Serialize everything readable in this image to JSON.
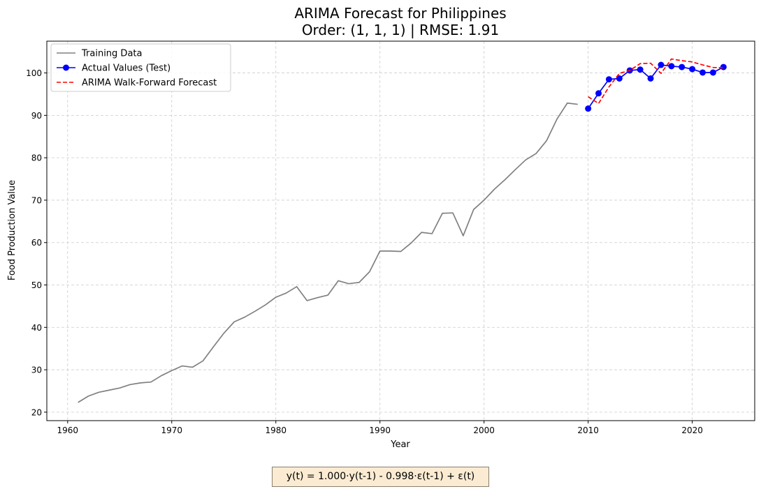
{
  "chart_data": {
    "type": "line",
    "title": "ARIMA Forecast for Philippines",
    "subtitle": "Order: (1, 1, 1) | RMSE: 1.91",
    "xlabel": "Year",
    "ylabel": "Food Production Value",
    "xlim": [
      1958,
      2026
    ],
    "ylim": [
      18,
      107.5
    ],
    "x_ticks": [
      1960,
      1970,
      1980,
      1990,
      2000,
      2010,
      2020
    ],
    "y_ticks": [
      20,
      30,
      40,
      50,
      60,
      70,
      80,
      90,
      100
    ],
    "grid": true,
    "legend_position": "top-left",
    "series": [
      {
        "name": "Training Data",
        "color": "#808080",
        "style": "solid",
        "marker": "none",
        "x": [
          1961,
          1962,
          1963,
          1964,
          1965,
          1966,
          1967,
          1968,
          1969,
          1970,
          1971,
          1972,
          1973,
          1974,
          1975,
          1976,
          1977,
          1978,
          1979,
          1980,
          1981,
          1982,
          1983,
          1984,
          1985,
          1986,
          1987,
          1988,
          1989,
          1990,
          1991,
          1992,
          1993,
          1994,
          1995,
          1996,
          1997,
          1998,
          1999,
          2000,
          2001,
          2002,
          2003,
          2004,
          2005,
          2006,
          2007,
          2008,
          2009
        ],
        "y": [
          22.3,
          23.8,
          24.7,
          25.2,
          25.7,
          26.5,
          26.9,
          27.1,
          28.6,
          29.8,
          30.9,
          30.6,
          32.1,
          35.4,
          38.6,
          41.3,
          42.4,
          43.8,
          45.3,
          47.1,
          48.1,
          49.6,
          46.3,
          47.0,
          47.6,
          51.0,
          50.3,
          50.6,
          53.1,
          58.0,
          58.0,
          57.9,
          59.9,
          62.4,
          62.1,
          66.9,
          67.0,
          61.6,
          67.8,
          70.0,
          72.6,
          74.8,
          77.2,
          79.5,
          81.0,
          84.0,
          89.1,
          92.9,
          92.6
        ]
      },
      {
        "name": "Actual Values (Test)",
        "color": "#0000ff",
        "style": "solid",
        "marker": "circle",
        "x": [
          2010,
          2011,
          2012,
          2013,
          2014,
          2015,
          2016,
          2017,
          2018,
          2019,
          2020,
          2021,
          2022,
          2023
        ],
        "y": [
          91.6,
          95.2,
          98.5,
          98.7,
          100.6,
          100.8,
          98.7,
          101.9,
          101.6,
          101.4,
          100.9,
          100.1,
          100.1,
          101.4
        ]
      },
      {
        "name": "ARIMA Walk-Forward Forecast",
        "color": "#ff0000",
        "style": "dashed",
        "marker": "none",
        "x": [
          2010,
          2011,
          2012,
          2013,
          2014,
          2015,
          2016,
          2017,
          2018,
          2019,
          2020,
          2021,
          2022,
          2023
        ],
        "y": [
          94.4,
          92.8,
          96.7,
          99.9,
          100.6,
          102.2,
          102.3,
          99.9,
          103.3,
          102.9,
          102.6,
          101.9,
          101.3,
          101.2
        ]
      }
    ],
    "annotation": "y(t) =  1.000·y(t-1) - 0.998·ε(t-1) + ε(t)"
  }
}
